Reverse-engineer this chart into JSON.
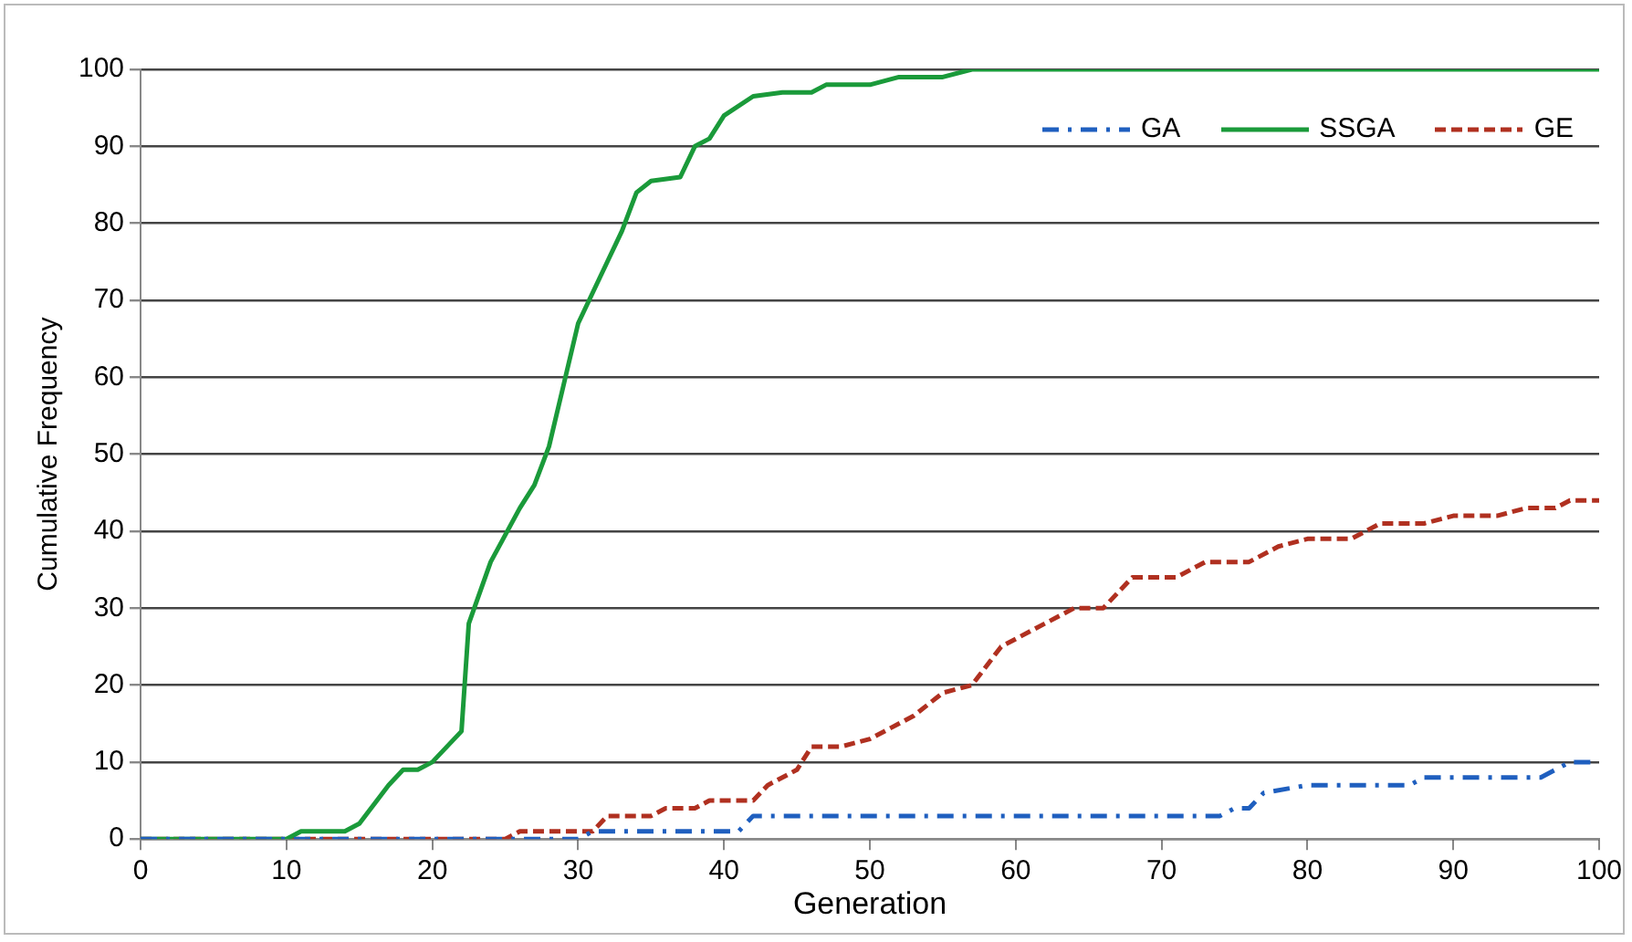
{
  "chart_data": {
    "type": "line",
    "xlabel": "Generation",
    "ylabel": "Cumulative Frequency",
    "xlim": [
      0,
      100
    ],
    "xticks": [
      0,
      10,
      20,
      30,
      40,
      50,
      60,
      70,
      80,
      90,
      100
    ],
    "ylim": [
      0,
      100
    ],
    "yticks": [
      0,
      10,
      20,
      30,
      40,
      50,
      60,
      70,
      80,
      90,
      100
    ],
    "grid": "y",
    "legend": "top right",
    "marker": "none",
    "series": [
      {
        "name": "GA",
        "color": "#1f5fbf",
        "line_style": "dashdot",
        "x": [
          0,
          30,
          31,
          41,
          42,
          74,
          75,
          76,
          77,
          80,
          87,
          88,
          96,
          98,
          100
        ],
        "values": [
          0,
          0,
          1,
          1,
          3,
          3,
          4,
          4,
          6,
          7,
          7,
          8,
          8,
          10,
          10
        ]
      },
      {
        "name": "SSGA",
        "color": "#1a9a3a",
        "line_style": "solid",
        "x": [
          0,
          10,
          11,
          14,
          15,
          17,
          18,
          19,
          20,
          22,
          22.5,
          24,
          26,
          27,
          28,
          29,
          30,
          31,
          32,
          33,
          34,
          35,
          37,
          38,
          39,
          40,
          42,
          44,
          46,
          47,
          50,
          52,
          55,
          57,
          100
        ],
        "values": [
          0,
          0,
          1,
          1,
          2,
          7,
          9,
          9,
          10,
          14,
          28,
          36,
          43,
          46,
          51,
          59,
          67,
          71,
          75,
          79,
          84,
          85.5,
          86,
          90,
          91,
          94,
          96.5,
          97,
          97,
          98,
          98,
          99,
          99,
          100,
          100
        ]
      },
      {
        "name": "GE",
        "color": "#b03020",
        "line_style": "dashed",
        "x": [
          0,
          25,
          26,
          31,
          32,
          35,
          36,
          38,
          39,
          42,
          43,
          45,
          46,
          48,
          50,
          53,
          55,
          57,
          59,
          62,
          64,
          66,
          68,
          71,
          73,
          76,
          78,
          80,
          83,
          85,
          88,
          90,
          93,
          95,
          97,
          98,
          100
        ],
        "values": [
          0,
          0,
          1,
          1,
          3,
          3,
          4,
          4,
          5,
          5,
          7,
          9,
          12,
          12,
          13,
          16,
          19,
          20,
          25,
          28,
          30,
          30,
          34,
          34,
          36,
          36,
          38,
          39,
          39,
          41,
          41,
          42,
          42,
          43,
          43,
          44,
          44
        ]
      }
    ]
  }
}
